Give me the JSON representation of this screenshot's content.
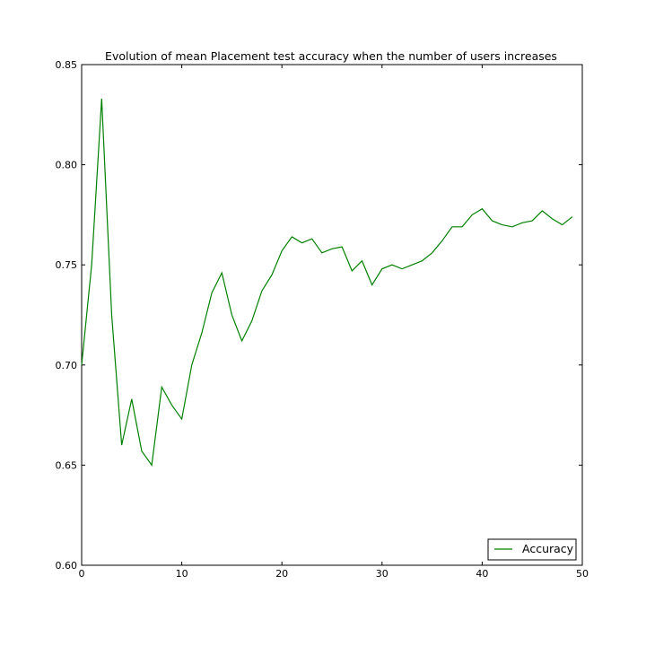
{
  "chart_data": {
    "type": "line",
    "title": "Evolution of mean Placement test accuracy when the number of users increases",
    "xlabel": "",
    "ylabel": "",
    "xlim": [
      0,
      50
    ],
    "ylim": [
      0.6,
      0.85
    ],
    "xticks": [
      0,
      10,
      20,
      30,
      40,
      50
    ],
    "yticks": [
      "0.60",
      "0.65",
      "0.70",
      "0.75",
      "0.80",
      "0.85"
    ],
    "grid": false,
    "legend_position": "lower-right",
    "line_color": "#008000",
    "series": [
      {
        "name": "Accuracy",
        "x": [
          0,
          1,
          2,
          3,
          4,
          5,
          6,
          7,
          8,
          9,
          10,
          11,
          12,
          13,
          14,
          15,
          16,
          17,
          18,
          19,
          20,
          21,
          22,
          23,
          24,
          25,
          26,
          27,
          28,
          29,
          30,
          31,
          32,
          33,
          34,
          35,
          36,
          37,
          38,
          39,
          40,
          41,
          42,
          43,
          44,
          45,
          46,
          47,
          48,
          49
        ],
        "y": [
          0.7,
          0.75,
          0.833,
          0.725,
          0.66,
          0.683,
          0.657,
          0.65,
          0.689,
          0.68,
          0.673,
          0.7,
          0.716,
          0.736,
          0.746,
          0.725,
          0.712,
          0.722,
          0.737,
          0.745,
          0.757,
          0.764,
          0.761,
          0.763,
          0.756,
          0.758,
          0.759,
          0.747,
          0.752,
          0.74,
          0.748,
          0.75,
          0.748,
          0.75,
          0.752,
          0.756,
          0.762,
          0.769,
          0.769,
          0.775,
          0.778,
          0.772,
          0.77,
          0.769,
          0.771,
          0.772,
          0.777,
          0.773,
          0.77,
          0.774
        ]
      }
    ]
  }
}
